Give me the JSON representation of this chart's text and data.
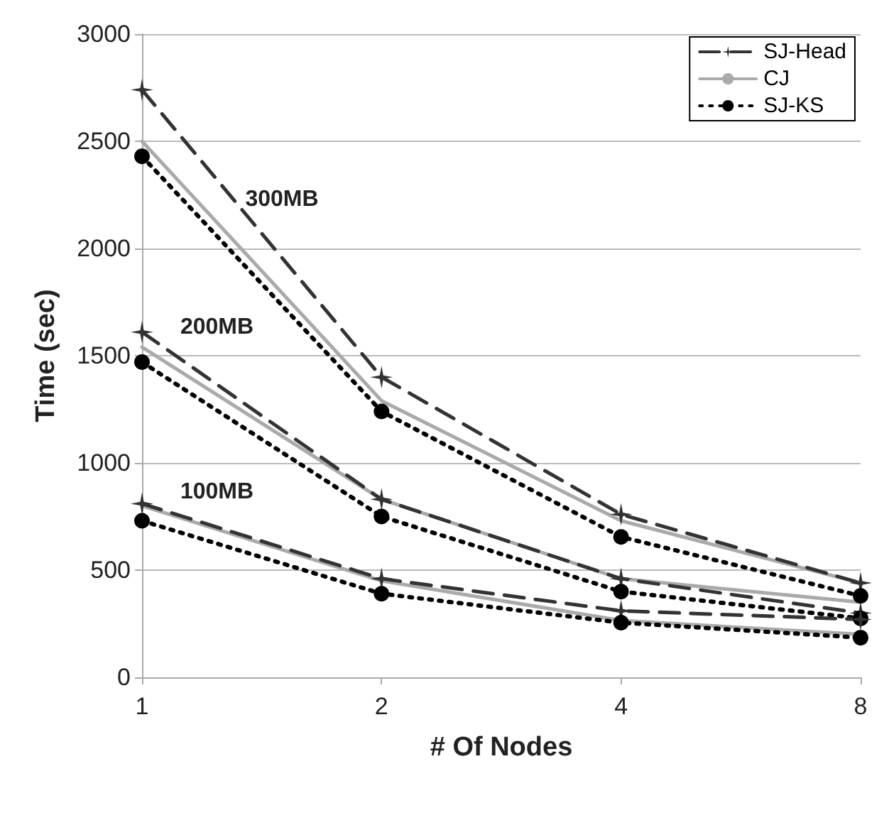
{
  "chart_data": {
    "type": "line",
    "xlabel": "# Of Nodes",
    "ylabel": "Time (sec)",
    "categories": [
      "1",
      "2",
      "4",
      "8"
    ],
    "ylim": [
      0,
      3000
    ],
    "yticks": [
      0,
      500,
      1000,
      1500,
      2000,
      2500,
      3000
    ],
    "grid": "y",
    "legend": "top right",
    "annotations": [
      "300MB",
      "200MB",
      "100MB"
    ],
    "series": [
      {
        "name": "SJ-Head",
        "color": "#333333",
        "marker": "star",
        "line_style": "dashed",
        "values": [
          2740,
          1400,
          760,
          440
        ]
      },
      {
        "name": "CJ",
        "color": "#aaaaaa",
        "marker": "none",
        "line_style": "solid",
        "values": [
          2500,
          1290,
          730,
          440
        ]
      },
      {
        "name": "SJ-KS",
        "color": "#000000",
        "marker": "circle",
        "line_style": "dotted",
        "values": [
          2430,
          1240,
          655,
          380
        ]
      },
      {
        "color": "#333333",
        "marker": "star",
        "line_style": "dashed",
        "values": [
          1610,
          830,
          460,
          300
        ]
      },
      {
        "color": "#aaaaaa",
        "marker": "none",
        "line_style": "solid",
        "values": [
          1540,
          830,
          460,
          350
        ]
      },
      {
        "color": "#000000",
        "marker": "circle",
        "line_style": "dotted",
        "values": [
          1470,
          750,
          400,
          275
        ]
      },
      {
        "color": "#333333",
        "marker": "star",
        "line_style": "dashed",
        "values": [
          810,
          460,
          310,
          270
        ]
      },
      {
        "color": "#aaaaaa",
        "marker": "none",
        "line_style": "solid",
        "values": [
          800,
          450,
          265,
          200
        ]
      },
      {
        "color": "#000000",
        "marker": "circle",
        "line_style": "dotted",
        "values": [
          730,
          390,
          255,
          185
        ]
      }
    ]
  }
}
